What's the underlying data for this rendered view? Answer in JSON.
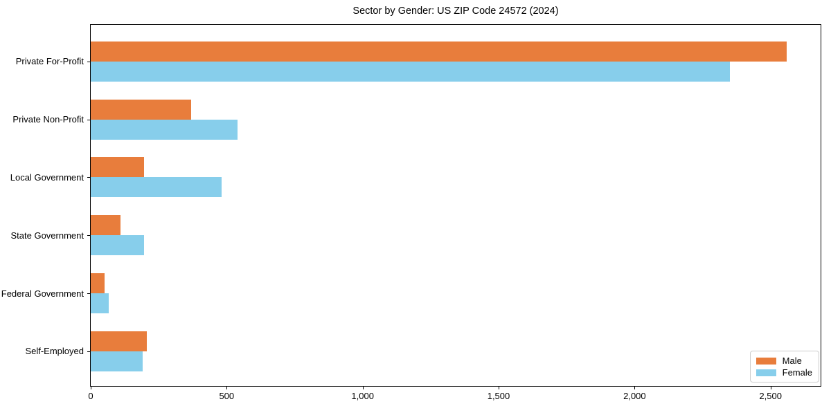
{
  "chart_data": {
    "type": "bar",
    "orientation": "horizontal",
    "title": "Sector by Gender: US ZIP Code 24572 (2024)",
    "categories": [
      "Private For-Profit",
      "Private Non-Profit",
      "Local Government",
      "State Government",
      "Federal Government",
      "Self-Employed"
    ],
    "series": [
      {
        "name": "Male",
        "color": "#e87d3c",
        "values": [
          2560,
          370,
          195,
          110,
          50,
          205
        ]
      },
      {
        "name": "Female",
        "color": "#87ceeb",
        "values": [
          2350,
          540,
          480,
          195,
          65,
          190
        ]
      }
    ],
    "xlim": [
      0,
      2684
    ],
    "x_ticks": [
      0,
      500,
      1000,
      1500,
      2000,
      2500
    ],
    "x_tick_labels": [
      "0",
      "500",
      "1,000",
      "1,500",
      "2,000",
      "2,500"
    ],
    "xlabel": "",
    "ylabel": "",
    "grid": false,
    "legend_position": "lower right",
    "plot_background": "#ffffff",
    "spine_color": "#000000"
  }
}
